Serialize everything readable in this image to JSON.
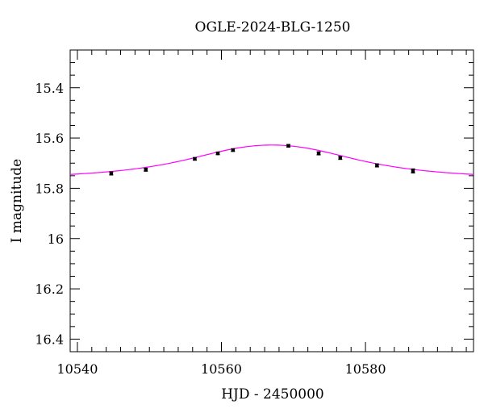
{
  "chart_data": {
    "type": "scatter",
    "title": "OGLE-2024-BLG-1250",
    "xlabel": "HJD - 2450000",
    "ylabel": "I magnitude",
    "xlim": [
      10539,
      10595
    ],
    "ylim": [
      15.25,
      16.45
    ],
    "y_inverted": true,
    "grid": false,
    "x_major_ticks": [
      10540,
      10560,
      10580
    ],
    "x_minor_step": 2,
    "y_major_ticks": [
      15.4,
      15.6,
      15.8,
      16,
      16.2,
      16.4
    ],
    "y_minor_step": 0.05,
    "tick_labels_x": [
      "10540",
      "10560",
      "10580"
    ],
    "tick_labels_y": [
      "15.4",
      "15.6",
      "15.8",
      "16",
      "16.2",
      "16.4"
    ],
    "points": {
      "color": "#000000",
      "x": [
        10544.7,
        10549.5,
        10556.3,
        10559.5,
        10561.6,
        10569.3,
        10573.5,
        10576.5,
        10581.6,
        10586.6
      ],
      "y": [
        15.741,
        15.726,
        15.683,
        15.661,
        15.648,
        15.631,
        15.661,
        15.679,
        15.709,
        15.731
      ],
      "err": [
        0.006,
        0.006,
        0.005,
        0.005,
        0.005,
        0.005,
        0.006,
        0.006,
        0.006,
        0.008
      ]
    },
    "model": {
      "color": "#ff00ff",
      "peak_x": 10567.0,
      "peak_mag": 15.628,
      "baseline_mag": 15.77,
      "width_days": 11.0
    }
  }
}
